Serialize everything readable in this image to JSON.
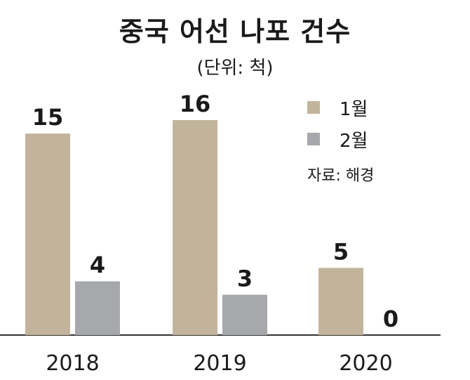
{
  "chart_data": {
    "type": "bar",
    "title": "중국 어선 나포 건수",
    "subtitle": "(단위: 척)",
    "categories": [
      "2018",
      "2019",
      "2020"
    ],
    "series": [
      {
        "name": "1월",
        "values": [
          15,
          16,
          5
        ],
        "color": "#c2b49c"
      },
      {
        "name": "2월",
        "values": [
          4,
          3,
          0
        ],
        "color": "#a6a8ab"
      }
    ],
    "source": "자료: 해경",
    "ylim": [
      0,
      16
    ],
    "legend_position": "top-right",
    "grid": false
  }
}
